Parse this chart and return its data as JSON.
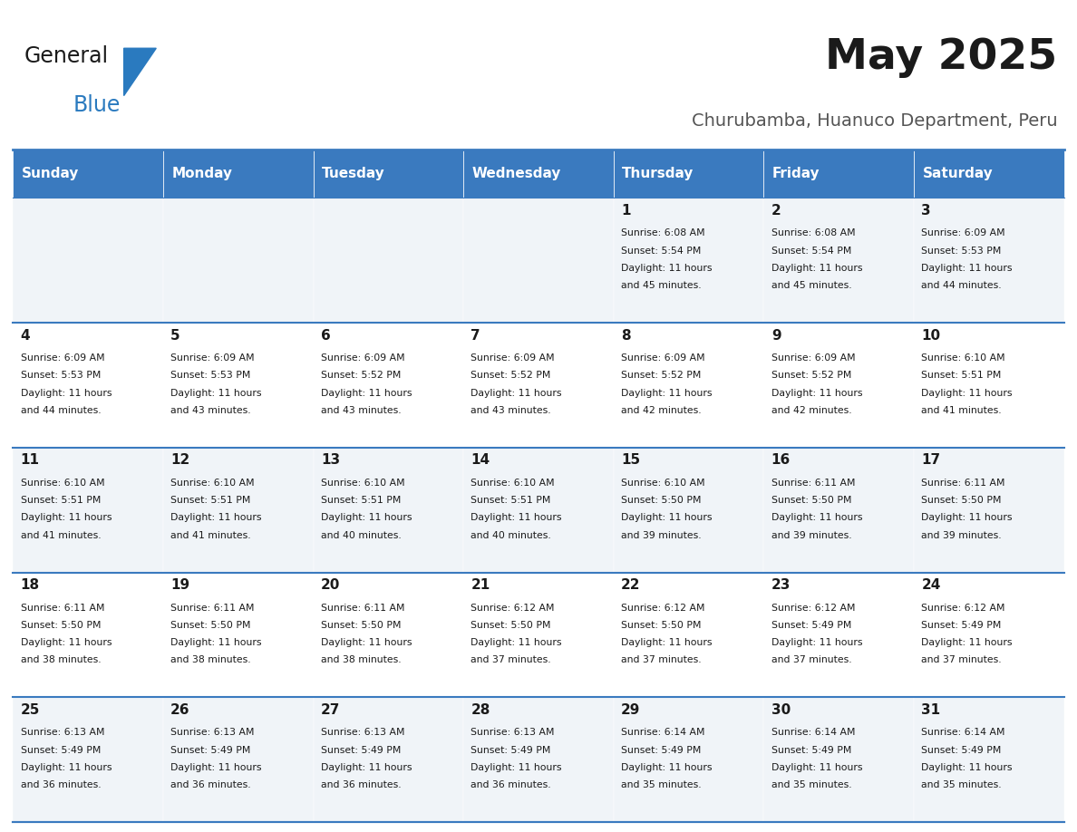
{
  "title": "May 2025",
  "subtitle": "Churubamba, Huanuco Department, Peru",
  "header_color": "#3a7abf",
  "header_text_color": "#ffffff",
  "cell_bg_even": "#f0f4f8",
  "cell_bg_odd": "#ffffff",
  "border_color": "#3a7abf",
  "days_of_week": [
    "Sunday",
    "Monday",
    "Tuesday",
    "Wednesday",
    "Thursday",
    "Friday",
    "Saturday"
  ],
  "calendar": [
    [
      null,
      null,
      null,
      null,
      {
        "day": 1,
        "sunrise": "6:08 AM",
        "sunset": "5:54 PM",
        "daylight1": "11 hours",
        "daylight2": "and 45 minutes."
      },
      {
        "day": 2,
        "sunrise": "6:08 AM",
        "sunset": "5:54 PM",
        "daylight1": "11 hours",
        "daylight2": "and 45 minutes."
      },
      {
        "day": 3,
        "sunrise": "6:09 AM",
        "sunset": "5:53 PM",
        "daylight1": "11 hours",
        "daylight2": "and 44 minutes."
      }
    ],
    [
      {
        "day": 4,
        "sunrise": "6:09 AM",
        "sunset": "5:53 PM",
        "daylight1": "11 hours",
        "daylight2": "and 44 minutes."
      },
      {
        "day": 5,
        "sunrise": "6:09 AM",
        "sunset": "5:53 PM",
        "daylight1": "11 hours",
        "daylight2": "and 43 minutes."
      },
      {
        "day": 6,
        "sunrise": "6:09 AM",
        "sunset": "5:52 PM",
        "daylight1": "11 hours",
        "daylight2": "and 43 minutes."
      },
      {
        "day": 7,
        "sunrise": "6:09 AM",
        "sunset": "5:52 PM",
        "daylight1": "11 hours",
        "daylight2": "and 43 minutes."
      },
      {
        "day": 8,
        "sunrise": "6:09 AM",
        "sunset": "5:52 PM",
        "daylight1": "11 hours",
        "daylight2": "and 42 minutes."
      },
      {
        "day": 9,
        "sunrise": "6:09 AM",
        "sunset": "5:52 PM",
        "daylight1": "11 hours",
        "daylight2": "and 42 minutes."
      },
      {
        "day": 10,
        "sunrise": "6:10 AM",
        "sunset": "5:51 PM",
        "daylight1": "11 hours",
        "daylight2": "and 41 minutes."
      }
    ],
    [
      {
        "day": 11,
        "sunrise": "6:10 AM",
        "sunset": "5:51 PM",
        "daylight1": "11 hours",
        "daylight2": "and 41 minutes."
      },
      {
        "day": 12,
        "sunrise": "6:10 AM",
        "sunset": "5:51 PM",
        "daylight1": "11 hours",
        "daylight2": "and 41 minutes."
      },
      {
        "day": 13,
        "sunrise": "6:10 AM",
        "sunset": "5:51 PM",
        "daylight1": "11 hours",
        "daylight2": "and 40 minutes."
      },
      {
        "day": 14,
        "sunrise": "6:10 AM",
        "sunset": "5:51 PM",
        "daylight1": "11 hours",
        "daylight2": "and 40 minutes."
      },
      {
        "day": 15,
        "sunrise": "6:10 AM",
        "sunset": "5:50 PM",
        "daylight1": "11 hours",
        "daylight2": "and 39 minutes."
      },
      {
        "day": 16,
        "sunrise": "6:11 AM",
        "sunset": "5:50 PM",
        "daylight1": "11 hours",
        "daylight2": "and 39 minutes."
      },
      {
        "day": 17,
        "sunrise": "6:11 AM",
        "sunset": "5:50 PM",
        "daylight1": "11 hours",
        "daylight2": "and 39 minutes."
      }
    ],
    [
      {
        "day": 18,
        "sunrise": "6:11 AM",
        "sunset": "5:50 PM",
        "daylight1": "11 hours",
        "daylight2": "and 38 minutes."
      },
      {
        "day": 19,
        "sunrise": "6:11 AM",
        "sunset": "5:50 PM",
        "daylight1": "11 hours",
        "daylight2": "and 38 minutes."
      },
      {
        "day": 20,
        "sunrise": "6:11 AM",
        "sunset": "5:50 PM",
        "daylight1": "11 hours",
        "daylight2": "and 38 minutes."
      },
      {
        "day": 21,
        "sunrise": "6:12 AM",
        "sunset": "5:50 PM",
        "daylight1": "11 hours",
        "daylight2": "and 37 minutes."
      },
      {
        "day": 22,
        "sunrise": "6:12 AM",
        "sunset": "5:50 PM",
        "daylight1": "11 hours",
        "daylight2": "and 37 minutes."
      },
      {
        "day": 23,
        "sunrise": "6:12 AM",
        "sunset": "5:49 PM",
        "daylight1": "11 hours",
        "daylight2": "and 37 minutes."
      },
      {
        "day": 24,
        "sunrise": "6:12 AM",
        "sunset": "5:49 PM",
        "daylight1": "11 hours",
        "daylight2": "and 37 minutes."
      }
    ],
    [
      {
        "day": 25,
        "sunrise": "6:13 AM",
        "sunset": "5:49 PM",
        "daylight1": "11 hours",
        "daylight2": "and 36 minutes."
      },
      {
        "day": 26,
        "sunrise": "6:13 AM",
        "sunset": "5:49 PM",
        "daylight1": "11 hours",
        "daylight2": "and 36 minutes."
      },
      {
        "day": 27,
        "sunrise": "6:13 AM",
        "sunset": "5:49 PM",
        "daylight1": "11 hours",
        "daylight2": "and 36 minutes."
      },
      {
        "day": 28,
        "sunrise": "6:13 AM",
        "sunset": "5:49 PM",
        "daylight1": "11 hours",
        "daylight2": "and 36 minutes."
      },
      {
        "day": 29,
        "sunrise": "6:14 AM",
        "sunset": "5:49 PM",
        "daylight1": "11 hours",
        "daylight2": "and 35 minutes."
      },
      {
        "day": 30,
        "sunrise": "6:14 AM",
        "sunset": "5:49 PM",
        "daylight1": "11 hours",
        "daylight2": "and 35 minutes."
      },
      {
        "day": 31,
        "sunrise": "6:14 AM",
        "sunset": "5:49 PM",
        "daylight1": "11 hours",
        "daylight2": "and 35 minutes."
      }
    ]
  ],
  "logo_color_general": "#1a1a1a",
  "logo_color_blue": "#2a7abf",
  "logo_triangle_color": "#2a7abf"
}
